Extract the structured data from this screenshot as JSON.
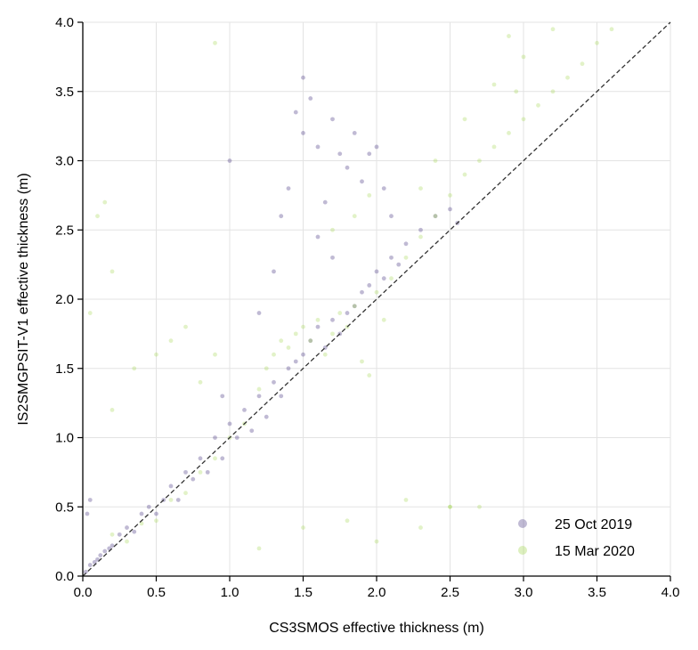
{
  "chart_data": {
    "type": "scatter",
    "title": "",
    "xlabel": "CS3SMOS effective thickness (m)",
    "ylabel": "IS2SMGPSIT-V1 effective thickness (m)",
    "xlim": [
      0.0,
      4.0
    ],
    "ylim": [
      0.0,
      4.0
    ],
    "xticks": [
      "0.0",
      "0.5",
      "1.0",
      "1.5",
      "2.0",
      "2.5",
      "3.0",
      "3.5",
      "4.0"
    ],
    "yticks": [
      "0.0",
      "0.5",
      "1.0",
      "1.5",
      "2.0",
      "2.5",
      "3.0",
      "3.5",
      "4.0"
    ],
    "grid": true,
    "reference_line": {
      "style": "dashed",
      "from": [
        0,
        0
      ],
      "to": [
        4,
        4
      ],
      "color": "#333333"
    },
    "legend": {
      "position": "bottom-right"
    },
    "series": [
      {
        "name": "25 Oct 2019",
        "color": "#4b3a85",
        "points": [
          [
            0.02,
            0.03
          ],
          [
            0.05,
            0.08
          ],
          [
            0.08,
            0.1
          ],
          [
            0.1,
            0.12
          ],
          [
            0.12,
            0.15
          ],
          [
            0.15,
            0.18
          ],
          [
            0.18,
            0.2
          ],
          [
            0.2,
            0.22
          ],
          [
            0.03,
            0.45
          ],
          [
            0.05,
            0.55
          ],
          [
            0.25,
            0.3
          ],
          [
            0.3,
            0.35
          ],
          [
            0.35,
            0.32
          ],
          [
            0.4,
            0.45
          ],
          [
            0.45,
            0.5
          ],
          [
            0.5,
            0.45
          ],
          [
            0.55,
            0.55
          ],
          [
            0.6,
            0.65
          ],
          [
            0.65,
            0.55
          ],
          [
            0.7,
            0.75
          ],
          [
            0.75,
            0.7
          ],
          [
            0.8,
            0.85
          ],
          [
            0.85,
            0.75
          ],
          [
            0.9,
            1.0
          ],
          [
            0.95,
            0.85
          ],
          [
            1.0,
            1.1
          ],
          [
            1.05,
            1.0
          ],
          [
            1.1,
            1.2
          ],
          [
            1.15,
            1.05
          ],
          [
            1.2,
            1.3
          ],
          [
            1.25,
            1.15
          ],
          [
            1.3,
            1.4
          ],
          [
            1.35,
            1.3
          ],
          [
            1.4,
            1.5
          ],
          [
            1.45,
            1.55
          ],
          [
            1.5,
            1.6
          ],
          [
            1.55,
            1.7
          ],
          [
            1.6,
            1.8
          ],
          [
            1.65,
            1.65
          ],
          [
            1.7,
            1.85
          ],
          [
            1.75,
            1.75
          ],
          [
            1.8,
            1.9
          ],
          [
            1.85,
            1.95
          ],
          [
            1.9,
            2.05
          ],
          [
            1.95,
            2.1
          ],
          [
            2.0,
            2.2
          ],
          [
            2.05,
            2.15
          ],
          [
            2.1,
            2.3
          ],
          [
            2.15,
            2.25
          ],
          [
            2.2,
            2.4
          ],
          [
            2.3,
            2.5
          ],
          [
            2.4,
            2.6
          ],
          [
            2.5,
            2.65
          ],
          [
            2.55,
            2.55
          ],
          [
            1.45,
            3.35
          ],
          [
            1.5,
            3.2
          ],
          [
            1.55,
            3.45
          ],
          [
            1.6,
            3.1
          ],
          [
            1.5,
            3.6
          ],
          [
            1.7,
            3.3
          ],
          [
            1.75,
            3.05
          ],
          [
            1.8,
            2.95
          ],
          [
            1.85,
            3.2
          ],
          [
            1.9,
            2.85
          ],
          [
            1.95,
            3.05
          ],
          [
            1.35,
            2.6
          ],
          [
            1.4,
            2.8
          ],
          [
            1.65,
            2.7
          ],
          [
            1.3,
            2.2
          ],
          [
            1.2,
            1.9
          ],
          [
            0.95,
            1.3
          ],
          [
            1.0,
            3.0
          ],
          [
            1.7,
            2.3
          ],
          [
            1.6,
            2.45
          ],
          [
            2.0,
            3.1
          ],
          [
            2.05,
            2.8
          ],
          [
            2.1,
            2.6
          ]
        ]
      },
      {
        "name": "15 Mar 2020",
        "color": "#9ed549",
        "points": [
          [
            0.2,
            0.3
          ],
          [
            0.3,
            0.25
          ],
          [
            0.4,
            0.38
          ],
          [
            0.5,
            0.4
          ],
          [
            0.6,
            0.55
          ],
          [
            0.7,
            0.6
          ],
          [
            0.8,
            0.75
          ],
          [
            0.9,
            0.85
          ],
          [
            1.0,
            1.0
          ],
          [
            1.1,
            1.1
          ],
          [
            1.2,
            1.35
          ],
          [
            1.25,
            1.5
          ],
          [
            1.3,
            1.6
          ],
          [
            1.35,
            1.7
          ],
          [
            1.4,
            1.65
          ],
          [
            1.45,
            1.75
          ],
          [
            1.5,
            1.8
          ],
          [
            1.55,
            1.7
          ],
          [
            1.6,
            1.85
          ],
          [
            1.65,
            1.6
          ],
          [
            1.7,
            1.75
          ],
          [
            1.75,
            1.9
          ],
          [
            1.8,
            1.8
          ],
          [
            1.85,
            1.95
          ],
          [
            1.9,
            1.55
          ],
          [
            1.95,
            1.45
          ],
          [
            2.0,
            2.05
          ],
          [
            2.05,
            1.85
          ],
          [
            2.1,
            2.15
          ],
          [
            2.2,
            2.3
          ],
          [
            2.3,
            2.45
          ],
          [
            2.4,
            2.6
          ],
          [
            2.5,
            2.75
          ],
          [
            2.6,
            2.9
          ],
          [
            2.7,
            3.0
          ],
          [
            2.8,
            3.1
          ],
          [
            2.9,
            3.2
          ],
          [
            3.0,
            3.3
          ],
          [
            3.1,
            3.4
          ],
          [
            3.2,
            3.5
          ],
          [
            3.3,
            3.6
          ],
          [
            3.4,
            3.7
          ],
          [
            3.5,
            3.85
          ],
          [
            3.6,
            3.95
          ],
          [
            2.9,
            3.9
          ],
          [
            3.0,
            3.75
          ],
          [
            3.2,
            3.95
          ],
          [
            2.95,
            3.5
          ],
          [
            2.8,
            3.55
          ],
          [
            2.6,
            3.3
          ],
          [
            2.4,
            3.0
          ],
          [
            2.3,
            2.8
          ],
          [
            1.95,
            2.75
          ],
          [
            1.85,
            2.6
          ],
          [
            1.7,
            2.5
          ],
          [
            0.9,
            1.6
          ],
          [
            0.8,
            1.4
          ],
          [
            0.7,
            1.8
          ],
          [
            0.6,
            1.7
          ],
          [
            0.5,
            1.6
          ],
          [
            0.35,
            1.5
          ],
          [
            0.2,
            1.2
          ],
          [
            0.15,
            2.7
          ],
          [
            0.2,
            2.2
          ],
          [
            0.1,
            2.6
          ],
          [
            0.05,
            1.9
          ],
          [
            0.9,
            3.85
          ],
          [
            2.3,
            0.35
          ],
          [
            2.0,
            0.25
          ],
          [
            1.8,
            0.4
          ],
          [
            2.5,
            0.5
          ],
          [
            2.7,
            0.5
          ],
          [
            1.5,
            0.35
          ],
          [
            1.2,
            0.2
          ],
          [
            2.2,
            0.55
          ],
          [
            2.5,
            0.5
          ]
        ]
      }
    ]
  }
}
